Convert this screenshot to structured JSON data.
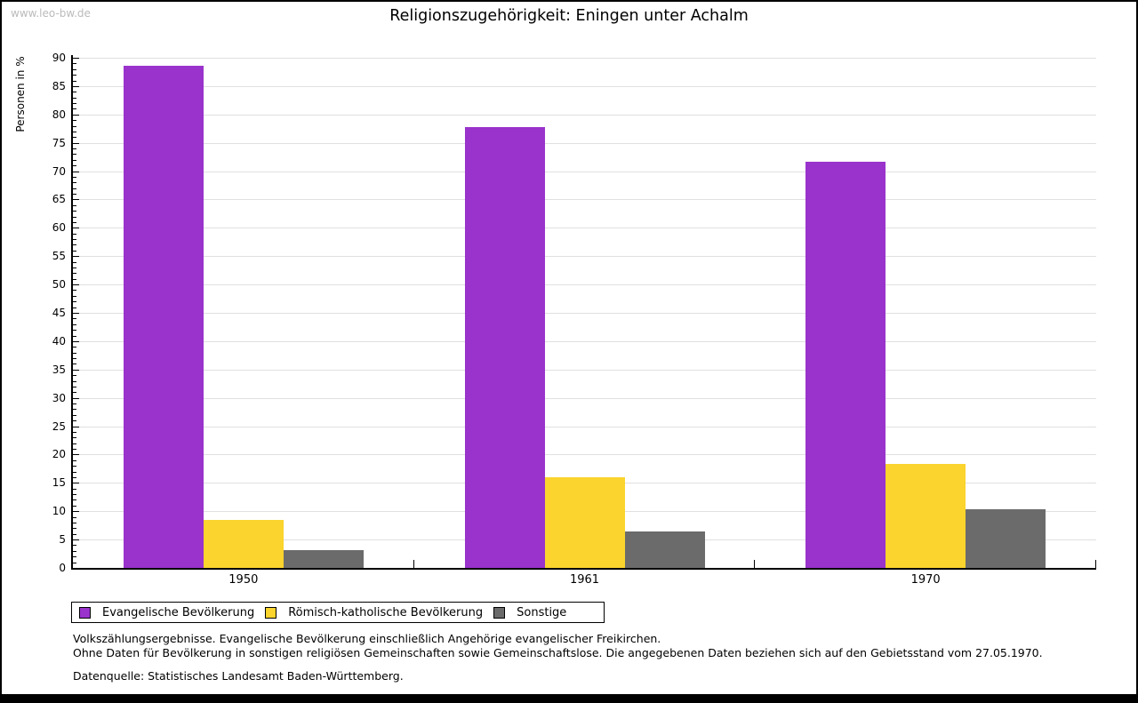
{
  "page": {
    "watermark": "www.leo-bw.de"
  },
  "chart_data": {
    "type": "bar",
    "title": "Religionszugehörigkeit: Eningen unter Achalm",
    "ylabel": "Personen in %",
    "xlabel": "",
    "categories": [
      "1950",
      "1961",
      "1970"
    ],
    "series": [
      {
        "name": "Evangelische Bevölkerung",
        "color": "#9933CC",
        "values": [
          88.6,
          77.7,
          71.7
        ]
      },
      {
        "name": "Römisch-katholische Bevölkerung",
        "color": "#FBD42D",
        "values": [
          8.5,
          16.0,
          18.3
        ]
      },
      {
        "name": "Sonstige",
        "color": "#6B6B6B",
        "values": [
          3.2,
          6.5,
          10.4
        ]
      }
    ],
    "ylim": [
      0,
      90
    ],
    "ytick_step": 5,
    "yminor_step": 1,
    "grid": true,
    "grid_color": "#E0E0E0",
    "legend_position": "bottom-left"
  },
  "footnotes": {
    "line1": "Volkszählungsergebnisse. Evangelische Bevölkerung einschließlich Angehörige evangelischer Freikirchen.",
    "line2": "Ohne Daten für Bevölkerung in sonstigen religiösen Gemeinschaften sowie Gemeinschaftslose. Die angegebenen Daten beziehen sich auf den Gebietsstand vom 27.05.1970.",
    "source": "Datenquelle: Statistisches Landesamt Baden-Württemberg."
  }
}
